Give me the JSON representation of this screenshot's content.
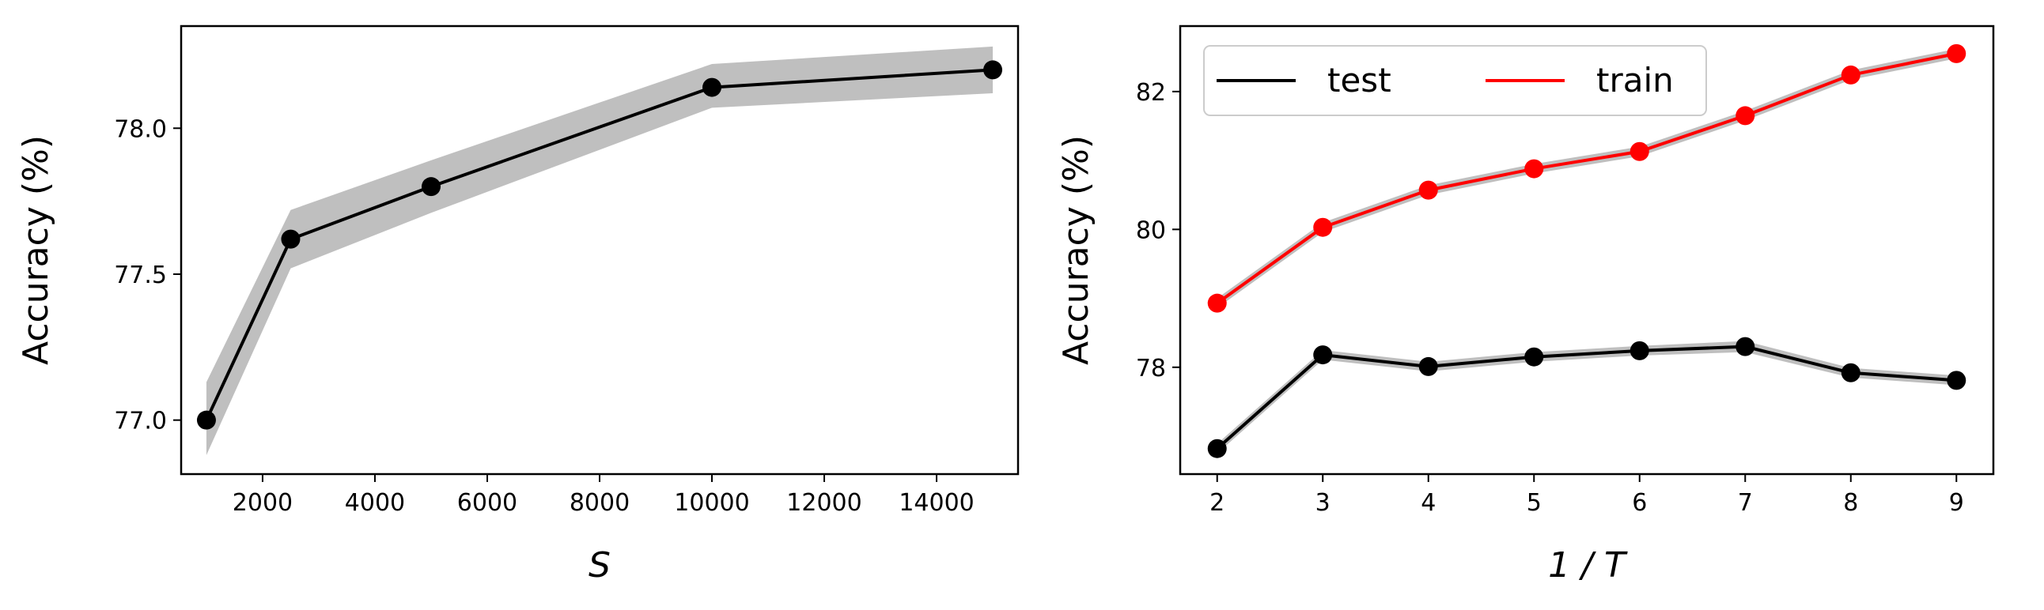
{
  "chart_data": [
    {
      "type": "line",
      "xlabel": "S",
      "ylabel": "Accuracy (%)",
      "xlim": [
        550,
        15450
      ],
      "ylim": [
        76.815,
        78.35
      ],
      "xticks": [
        "2000",
        "4000",
        "6000",
        "8000",
        "10000",
        "12000",
        "14000"
      ],
      "yticks": [
        "77.0",
        "77.5",
        "78.0"
      ],
      "grid": false,
      "series": [
        {
          "x": [
            1000,
            2500,
            5000,
            10000,
            15000
          ],
          "values": [
            77.0,
            77.62,
            77.8,
            78.14,
            78.2
          ],
          "band_lower": [
            76.88,
            77.52,
            77.71,
            78.07,
            78.12
          ],
          "band_upper": [
            77.13,
            77.72,
            77.89,
            78.22,
            78.28
          ],
          "color": "#000000"
        }
      ]
    },
    {
      "type": "line",
      "xlabel": "1 / T",
      "ylabel": "Accuracy (%)",
      "xlim": [
        1.65,
        9.35
      ],
      "ylim": [
        76.45,
        82.95
      ],
      "xticks": [
        "2",
        "3",
        "4",
        "5",
        "6",
        "7",
        "8",
        "9"
      ],
      "yticks": [
        "78",
        "80",
        "82"
      ],
      "grid": false,
      "legend_position": "top-left",
      "series": [
        {
          "name": "test",
          "x": [
            2,
            3,
            4,
            5,
            6,
            7,
            8,
            9
          ],
          "values": [
            76.82,
            78.18,
            78.01,
            78.15,
            78.24,
            78.3,
            77.92,
            77.81
          ],
          "band_lower": [
            76.75,
            78.11,
            77.94,
            78.08,
            78.17,
            78.22,
            77.85,
            77.74
          ],
          "band_upper": [
            76.89,
            78.25,
            78.08,
            78.22,
            78.31,
            78.38,
            77.99,
            77.88
          ],
          "color": "#000000"
        },
        {
          "name": "train",
          "x": [
            2,
            3,
            4,
            5,
            6,
            7,
            8,
            9
          ],
          "values": [
            78.93,
            80.03,
            80.57,
            80.88,
            81.13,
            81.65,
            82.24,
            82.55
          ],
          "band_lower": [
            78.86,
            79.96,
            80.5,
            80.81,
            81.06,
            81.58,
            82.17,
            82.48
          ],
          "band_upper": [
            79.0,
            80.1,
            80.64,
            80.95,
            81.2,
            81.72,
            82.31,
            82.62
          ],
          "color": "#ff0000"
        }
      ]
    }
  ]
}
